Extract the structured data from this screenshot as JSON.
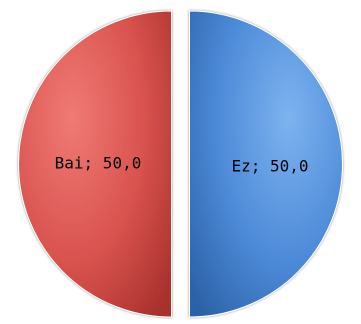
{
  "chart_data": {
    "type": "pie",
    "categories": [
      "Bai",
      "Ez"
    ],
    "values": [
      50.0,
      50.0
    ],
    "labels": [
      "Bai; 50,0",
      "Ez; 50,0"
    ],
    "colors": [
      "#c0504d",
      "#4f81bd"
    ],
    "exploded": true,
    "legend": "none",
    "style": "3d-gradient"
  }
}
